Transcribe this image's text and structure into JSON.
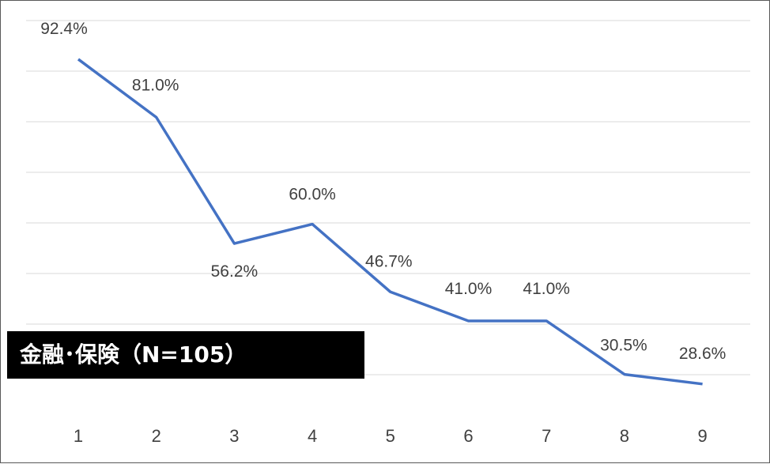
{
  "chart_data": {
    "type": "line",
    "title": "金融･保険（N=105）",
    "categories": [
      "1",
      "2",
      "3",
      "4",
      "5",
      "6",
      "7",
      "8",
      "9"
    ],
    "series": [
      {
        "values": [
          92.4,
          81.0,
          56.2,
          60.0,
          46.7,
          41.0,
          41.0,
          30.5,
          28.6
        ],
        "labels": [
          "92.4%",
          "81.0%",
          "56.2%",
          "60.0%",
          "46.7%",
          "41.0%",
          "41.0%",
          "30.5%",
          "28.6%"
        ],
        "color": "#4472c4"
      }
    ],
    "ylim": [
      0,
      100
    ],
    "grid": true,
    "legend": "none",
    "colors": {
      "line": "#4472c4",
      "grid": "#d9d9d9",
      "title_bg": "#000000",
      "title_fg": "#ffffff"
    }
  }
}
